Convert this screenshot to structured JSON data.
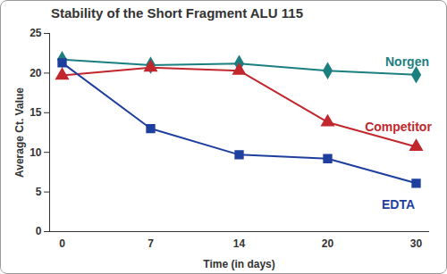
{
  "chart_data": {
    "type": "line",
    "title": "Stability of the Short Fragment ALU 115",
    "x_label": "Time (in days)",
    "y_label": "Average Ct. Value",
    "categories": [
      "0",
      "7",
      "14",
      "20",
      "30"
    ],
    "series": [
      {
        "name": "Norgen",
        "color": "#1c7f7f",
        "marker": "diamond",
        "values": [
          21.7,
          21.0,
          21.2,
          20.3,
          19.8
        ]
      },
      {
        "name": "Competitor",
        "color": "#c1272d",
        "marker": "triangle",
        "values": [
          19.7,
          20.7,
          20.3,
          13.8,
          10.7
        ]
      },
      {
        "name": "EDTA",
        "color": "#1f3f9e",
        "marker": "square",
        "values": [
          21.3,
          13.0,
          9.7,
          9.2,
          6.1
        ]
      }
    ],
    "ylim": [
      0,
      25
    ],
    "yticks": [
      0,
      5,
      10,
      15,
      20,
      25
    ],
    "grid": false
  }
}
